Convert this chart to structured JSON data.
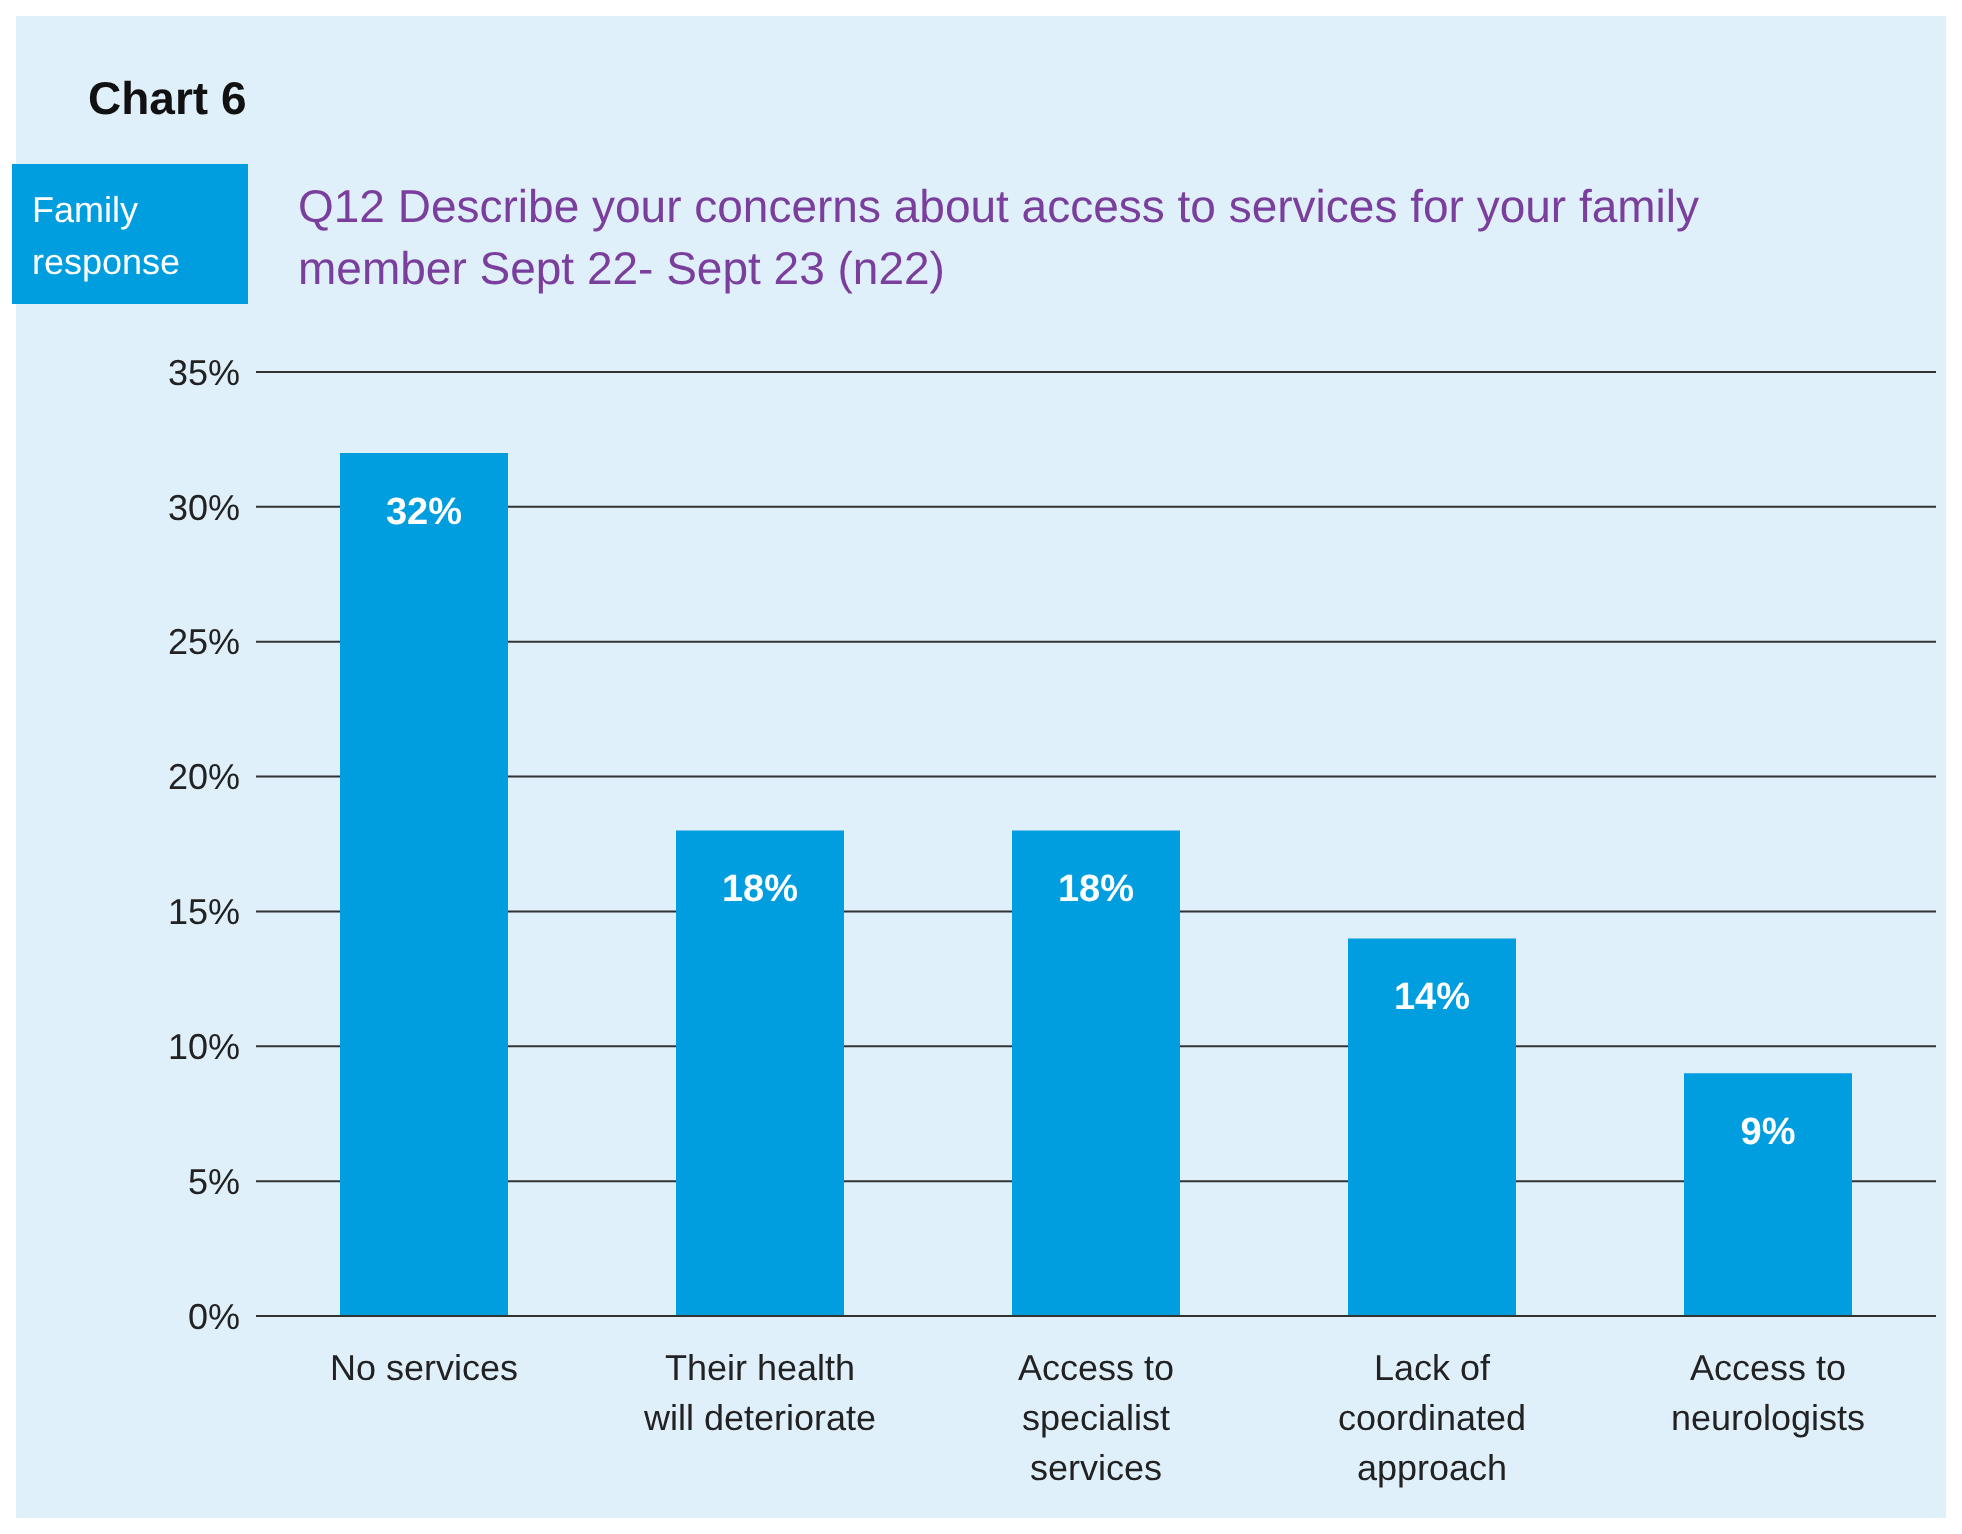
{
  "chart_data": {
    "type": "bar",
    "title": "Chart 6",
    "subtitle": "Q12 Describe your concerns about access to services for your family member Sept 22- Sept 23 (n22)",
    "annotations": [
      "Family response"
    ],
    "categories": [
      "No services",
      "Their health will deteriorate",
      "Access to specialist services",
      "Lack of coordinated approach",
      "Access to neurologists"
    ],
    "values": [
      32,
      18,
      18,
      14,
      9
    ],
    "value_labels": [
      "32%",
      "18%",
      "18%",
      "14%",
      "9%"
    ],
    "color": "#009ddf",
    "ylim": [
      0,
      35
    ],
    "yticks": [
      {
        "value": 0,
        "label": "0%"
      },
      {
        "value": 5,
        "label": "5%"
      },
      {
        "value": 10,
        "label": "10%"
      },
      {
        "value": 15,
        "label": "15%"
      },
      {
        "value": 20,
        "label": "20%"
      },
      {
        "value": 25,
        "label": "25%"
      },
      {
        "value": 30,
        "label": "30%"
      },
      {
        "value": 35,
        "label": "35%"
      }
    ],
    "grid": "y",
    "legend": false
  }
}
